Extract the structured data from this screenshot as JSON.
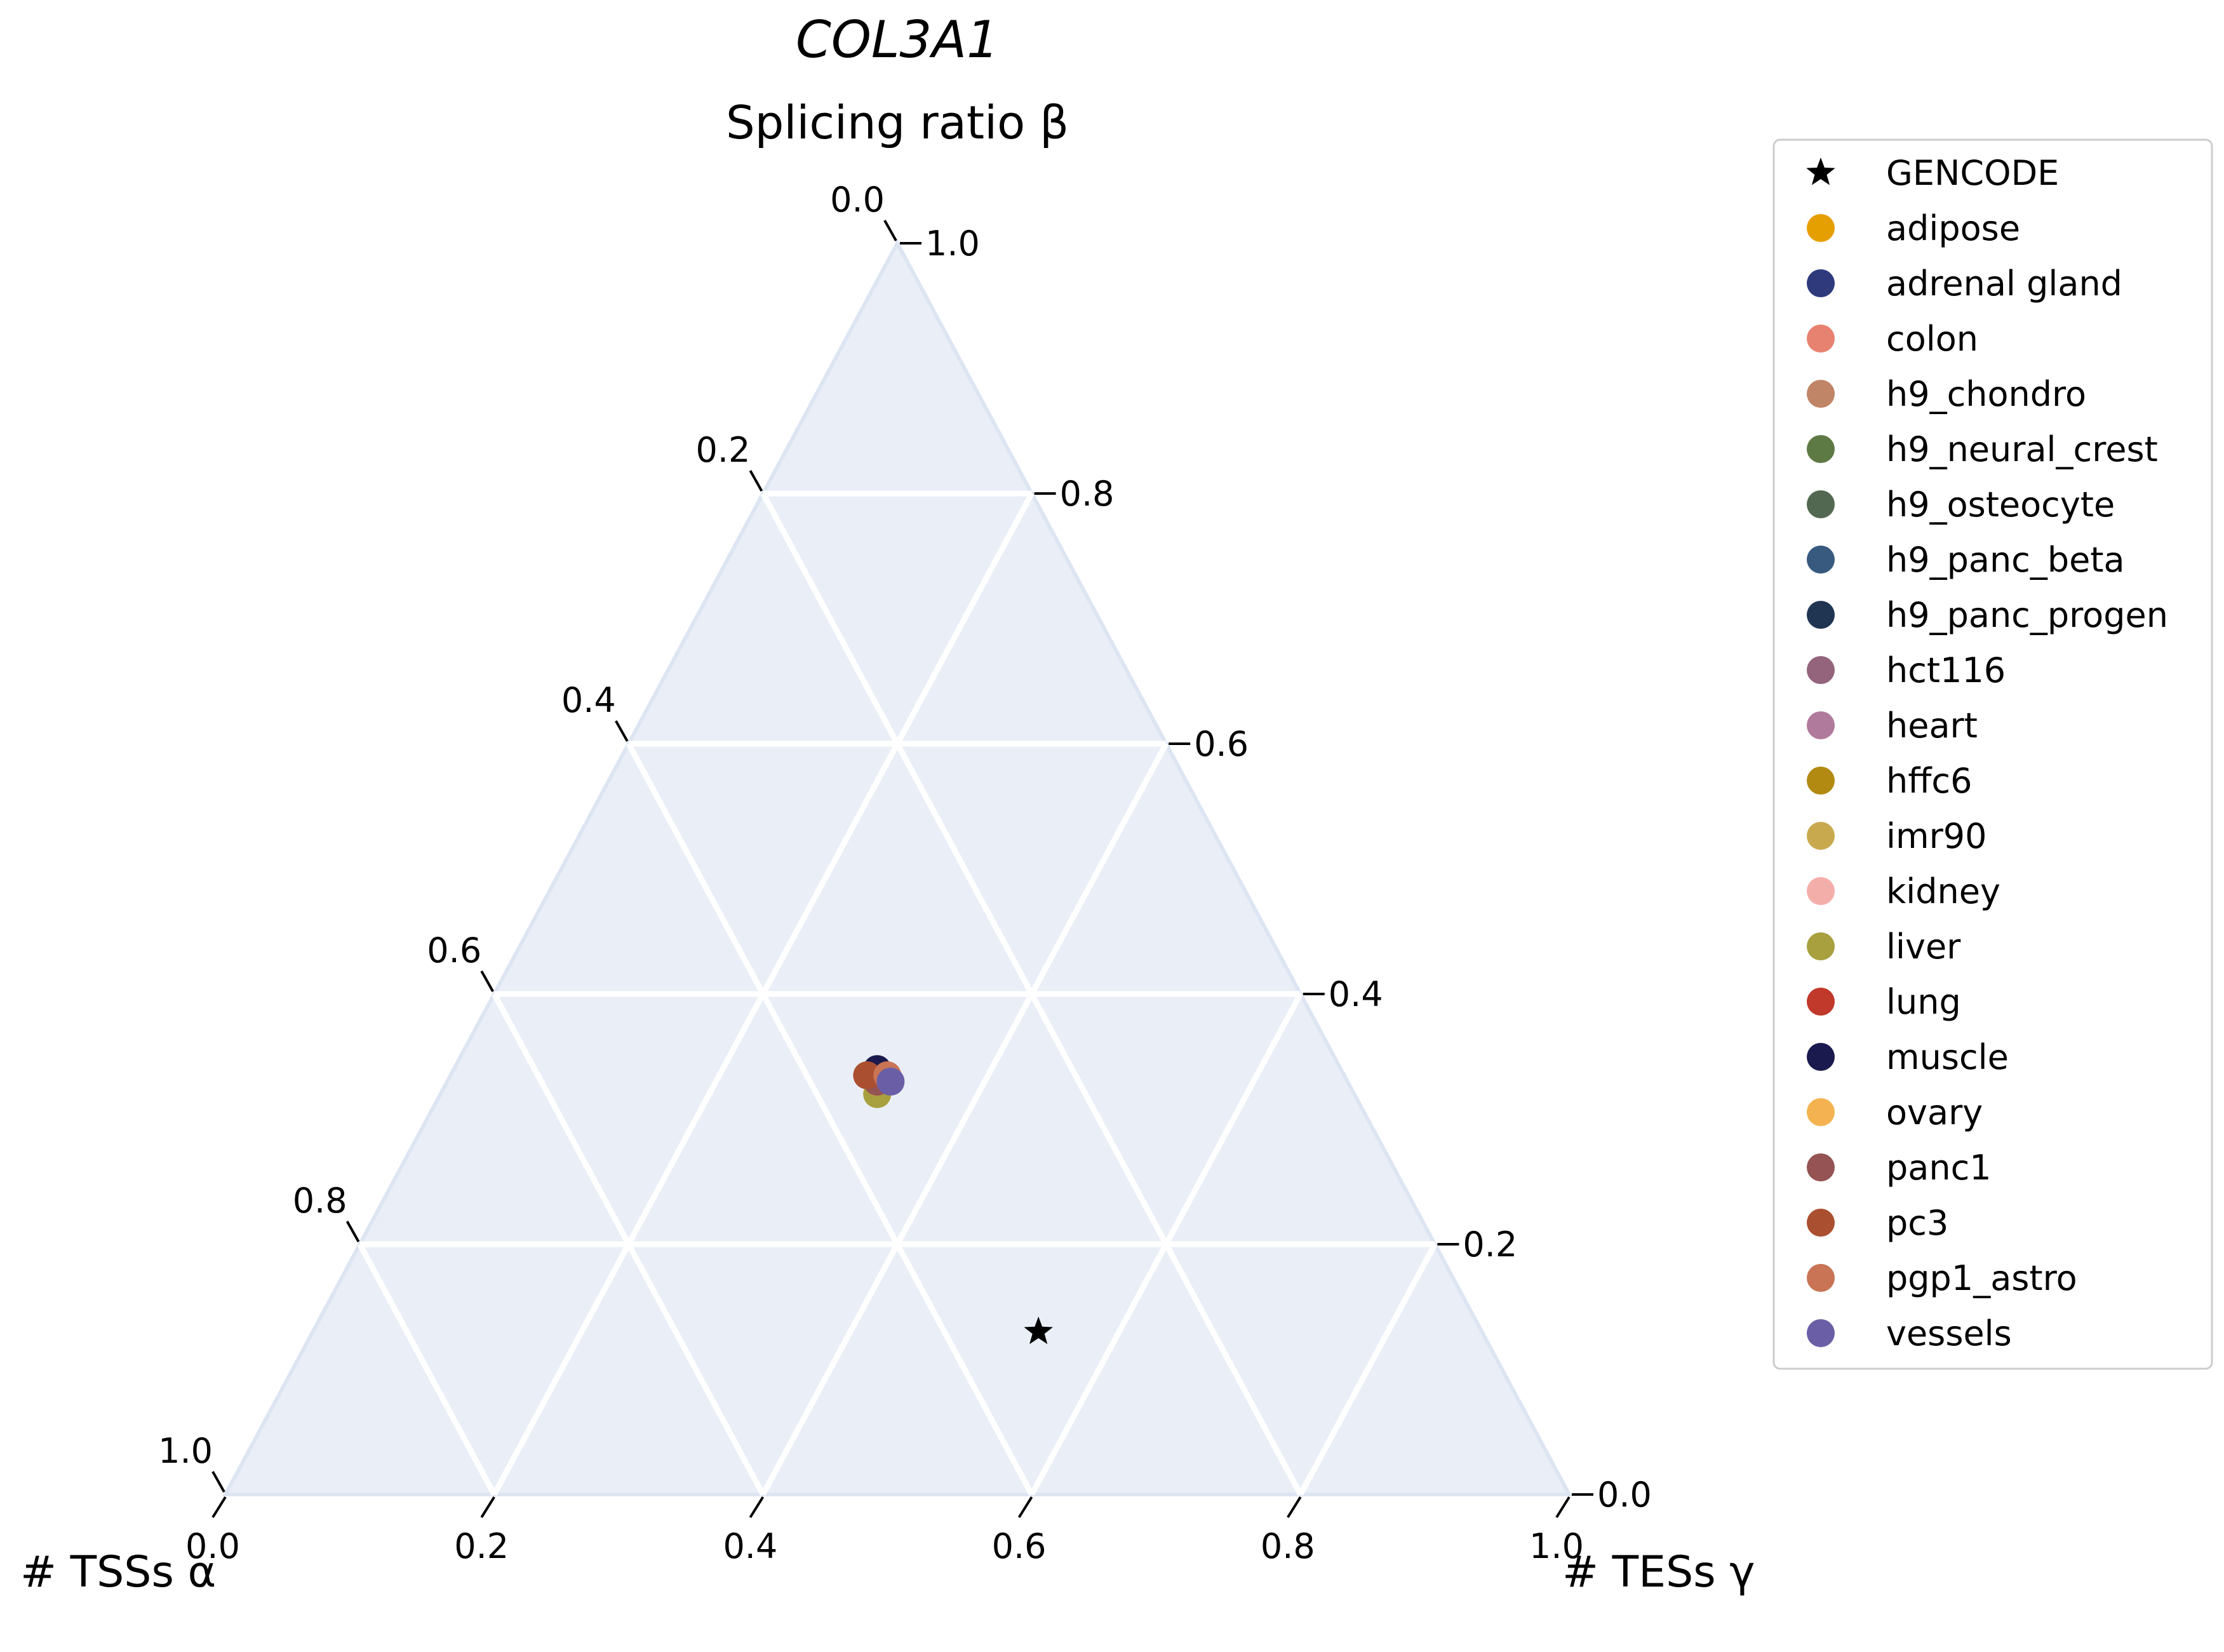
{
  "chart_data": {
    "type": "scatter",
    "subtype": "ternary",
    "title": "COL3A1",
    "top_axis_label": "Splicing ratio β",
    "left_axis_label": "# TSSs α",
    "right_axis_label": "# TESs γ",
    "ticks": [
      "0.0",
      "0.2",
      "0.4",
      "0.6",
      "0.8",
      "1.0"
    ],
    "grid": true,
    "plot_background": "#eaeff7",
    "legend_position": "right",
    "series": [
      {
        "name": "GENCODE",
        "marker": "star",
        "color": "#000000",
        "points": [
          {
            "alpha": 0.33,
            "beta": 0.13,
            "gamma": 0.54
          }
        ]
      },
      {
        "name": "adipose",
        "marker": "circle",
        "color": "#e69f00",
        "points": [
          {
            "alpha": 0.35,
            "beta": 0.33,
            "gamma": 0.32
          }
        ]
      },
      {
        "name": "adrenal gland",
        "marker": "circle",
        "color": "#2e3a7c",
        "points": [
          {
            "alpha": 0.35,
            "beta": 0.33,
            "gamma": 0.32
          }
        ]
      },
      {
        "name": "colon",
        "marker": "circle",
        "color": "#e6826f",
        "points": [
          {
            "alpha": 0.34,
            "beta": 0.335,
            "gamma": 0.325
          }
        ]
      },
      {
        "name": "h9_chondro",
        "marker": "circle",
        "color": "#c08466",
        "points": [
          {
            "alpha": 0.35,
            "beta": 0.33,
            "gamma": 0.32
          }
        ]
      },
      {
        "name": "h9_neural_crest",
        "marker": "circle",
        "color": "#5e7a44",
        "points": [
          {
            "alpha": 0.35,
            "beta": 0.33,
            "gamma": 0.32
          }
        ]
      },
      {
        "name": "h9_osteocyte",
        "marker": "circle",
        "color": "#536850",
        "points": [
          {
            "alpha": 0.35,
            "beta": 0.33,
            "gamma": 0.32
          }
        ]
      },
      {
        "name": "h9_panc_beta",
        "marker": "circle",
        "color": "#375a7e",
        "points": [
          {
            "alpha": 0.35,
            "beta": 0.33,
            "gamma": 0.32
          }
        ]
      },
      {
        "name": "h9_panc_progen",
        "marker": "circle",
        "color": "#1f3552",
        "points": [
          {
            "alpha": 0.35,
            "beta": 0.33,
            "gamma": 0.32
          }
        ]
      },
      {
        "name": "hct116",
        "marker": "circle",
        "color": "#93647c",
        "points": [
          {
            "alpha": 0.35,
            "beta": 0.33,
            "gamma": 0.32
          }
        ]
      },
      {
        "name": "heart",
        "marker": "circle",
        "color": "#b07a9c",
        "points": [
          {
            "alpha": 0.35,
            "beta": 0.33,
            "gamma": 0.32
          }
        ]
      },
      {
        "name": "hffc6",
        "marker": "circle",
        "color": "#b28a12",
        "points": [
          {
            "alpha": 0.35,
            "beta": 0.33,
            "gamma": 0.32
          }
        ]
      },
      {
        "name": "imr90",
        "marker": "circle",
        "color": "#c9a94e",
        "points": [
          {
            "alpha": 0.355,
            "beta": 0.32,
            "gamma": 0.325
          }
        ]
      },
      {
        "name": "kidney",
        "marker": "circle",
        "color": "#f4aeaa",
        "points": [
          {
            "alpha": 0.35,
            "beta": 0.33,
            "gamma": 0.32
          }
        ]
      },
      {
        "name": "liver",
        "marker": "circle",
        "color": "#a8a03e",
        "points": [
          {
            "alpha": 0.355,
            "beta": 0.32,
            "gamma": 0.325
          }
        ]
      },
      {
        "name": "lung",
        "marker": "circle",
        "color": "#c0392b",
        "points": [
          {
            "alpha": 0.35,
            "beta": 0.33,
            "gamma": 0.32
          }
        ]
      },
      {
        "name": "muscle",
        "marker": "circle",
        "color": "#1b1a4e",
        "points": [
          {
            "alpha": 0.345,
            "beta": 0.34,
            "gamma": 0.315
          }
        ]
      },
      {
        "name": "ovary",
        "marker": "circle",
        "color": "#f4b350",
        "points": [
          {
            "alpha": 0.35,
            "beta": 0.33,
            "gamma": 0.32
          }
        ]
      },
      {
        "name": "panc1",
        "marker": "circle",
        "color": "#955353",
        "points": [
          {
            "alpha": 0.35,
            "beta": 0.33,
            "gamma": 0.32
          }
        ]
      },
      {
        "name": "pc3",
        "marker": "circle",
        "color": "#aa4f30",
        "points": [
          {
            "alpha": 0.355,
            "beta": 0.335,
            "gamma": 0.31
          }
        ]
      },
      {
        "name": "pgp1_astro",
        "marker": "circle",
        "color": "#c87455",
        "points": [
          {
            "alpha": 0.34,
            "beta": 0.335,
            "gamma": 0.325
          }
        ]
      },
      {
        "name": "vessels",
        "marker": "circle",
        "color": "#6a5fa6",
        "points": [
          {
            "alpha": 0.34,
            "beta": 0.33,
            "gamma": 0.33
          }
        ]
      }
    ]
  }
}
